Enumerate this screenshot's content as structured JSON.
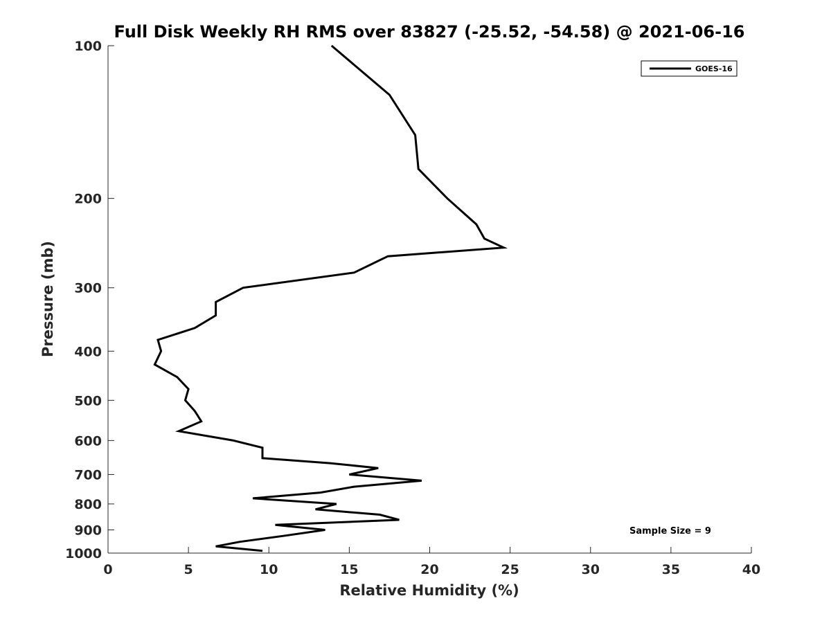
{
  "chart_data": {
    "type": "line",
    "title": "Full Disk Weekly RH RMS over 83827 (-25.52, -54.58) @ 2021-06-16",
    "xlabel": "Relative Humidity (%)",
    "ylabel": "Pressure (mb)",
    "xlim": [
      0,
      40
    ],
    "ylim": [
      100,
      1000
    ],
    "yscale": "log",
    "y_reversed": true,
    "xticks": [
      0,
      5,
      10,
      15,
      20,
      25,
      30,
      35,
      40
    ],
    "yticks": [
      100,
      200,
      300,
      400,
      500,
      600,
      700,
      800,
      900,
      1000
    ],
    "grid": false,
    "legend_position": "top-right",
    "annotation": "Sample Size = 9",
    "series": [
      {
        "name": "GOES-16",
        "color": "#000000",
        "points": [
          [
            13.9,
            100
          ],
          [
            17.5,
            125
          ],
          [
            19.1,
            150
          ],
          [
            19.3,
            175
          ],
          [
            21.1,
            200
          ],
          [
            22.9,
            225
          ],
          [
            23.4,
            240
          ],
          [
            24.6,
            250
          ],
          [
            17.4,
            260
          ],
          [
            15.3,
            280
          ],
          [
            8.4,
            300
          ],
          [
            6.7,
            320
          ],
          [
            6.7,
            340
          ],
          [
            5.4,
            360
          ],
          [
            3.1,
            380
          ],
          [
            3.3,
            400
          ],
          [
            2.9,
            425
          ],
          [
            4.3,
            450
          ],
          [
            5.0,
            475
          ],
          [
            4.8,
            500
          ],
          [
            5.4,
            525
          ],
          [
            5.8,
            550
          ],
          [
            4.4,
            575
          ],
          [
            7.8,
            600
          ],
          [
            9.6,
            620
          ],
          [
            9.6,
            650
          ],
          [
            13.8,
            665
          ],
          [
            16.8,
            680
          ],
          [
            15.0,
            700
          ],
          [
            19.5,
            720
          ],
          [
            15.3,
            740
          ],
          [
            13.2,
            760
          ],
          [
            9.0,
            780
          ],
          [
            14.2,
            800
          ],
          [
            12.9,
            820
          ],
          [
            16.9,
            840
          ],
          [
            18.1,
            860
          ],
          [
            10.4,
            880
          ],
          [
            13.5,
            900
          ],
          [
            10.9,
            925
          ],
          [
            8.2,
            950
          ],
          [
            6.7,
            970
          ],
          [
            9.6,
            990
          ]
        ]
      }
    ]
  }
}
